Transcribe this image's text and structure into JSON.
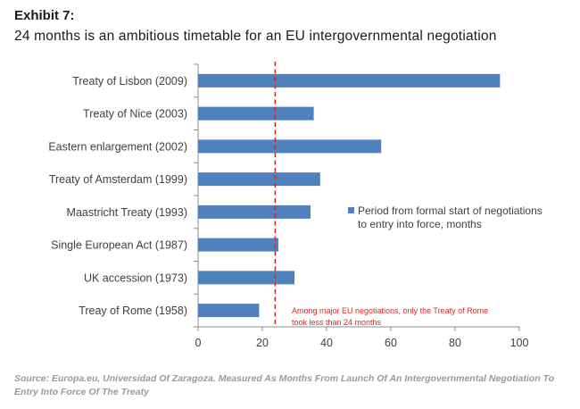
{
  "header": {
    "exhibit": "Exhibit 7:",
    "title": "24 months is an ambitious timetable for an EU intergovernmental negotiation"
  },
  "chart_data": {
    "type": "bar",
    "orientation": "horizontal",
    "categories": [
      "Treaty of Lisbon (2009)",
      "Treaty of Nice (2003)",
      "Eastern enlargement (2002)",
      "Treaty of Amsterdam (1999)",
      "Maastricht Treaty (1993)",
      "Single European Act (1987)",
      "UK accession (1973)",
      "Treay of Rome (1958)"
    ],
    "series": [
      {
        "name": "Period from formal start of negotiations to entry into force, months",
        "legend_lines": [
          "Period from formal start of negotiations",
          "to entry into force, months"
        ],
        "values": [
          94,
          36,
          57,
          38,
          35,
          25,
          30,
          19
        ],
        "color": "#4f81bd"
      }
    ],
    "xlim": [
      0,
      100
    ],
    "xticks": [
      0,
      20,
      40,
      60,
      80,
      100
    ],
    "reference_line": {
      "value": 24,
      "color": "#d42a2a",
      "style": "dashed"
    },
    "annotation": {
      "lines": [
        "Among major EU negotiations, only the Treaty of Rome",
        "took less than 24 months"
      ],
      "color": "#d42a2a"
    },
    "legend_position": "right",
    "grid": false
  },
  "source": "Source: Europa.eu, Universidad Of Zaragoza. Measured As Months From Launch Of An Intergovernmental Negotiation To Entry Into Force Of The Treaty"
}
